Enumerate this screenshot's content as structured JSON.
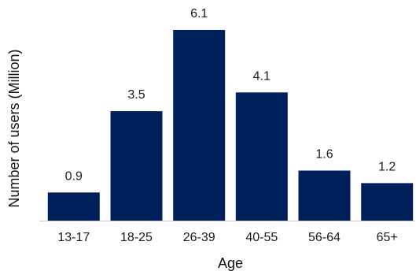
{
  "chart_data": {
    "type": "bar",
    "title": "",
    "xlabel": "Age",
    "ylabel": "Number of users (Million)",
    "categories": [
      "13-17",
      "18-25",
      "26-39",
      "40-55",
      "56-64",
      "65+"
    ],
    "values": [
      0.9,
      3.5,
      6.1,
      4.1,
      1.6,
      1.2
    ],
    "data_labels": [
      "0.9",
      "3.5",
      "6.1",
      "4.1",
      "1.6",
      "1.2"
    ],
    "ylim": [
      0,
      6.1
    ],
    "grid": false,
    "legend": "none",
    "colors": {
      "bar": "#00205b",
      "baseline": "#cccccc",
      "text": "#1a1a1a"
    }
  }
}
